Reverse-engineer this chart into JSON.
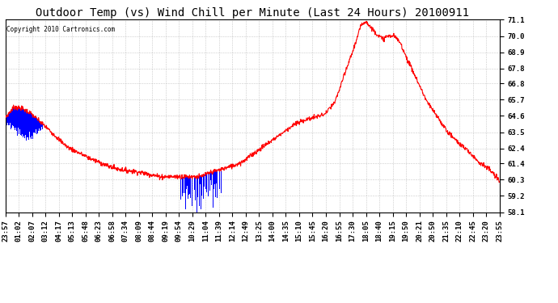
{
  "title": "Outdoor Temp (vs) Wind Chill per Minute (Last 24 Hours) 20100911",
  "copyright": "Copyright 2010 Cartronics.com",
  "ymin": 58.1,
  "ymax": 71.1,
  "yticks": [
    58.1,
    59.2,
    60.3,
    61.4,
    62.4,
    63.5,
    64.6,
    65.7,
    66.8,
    67.8,
    68.9,
    70.0,
    71.1
  ],
  "xtick_labels": [
    "23:57",
    "01:02",
    "02:07",
    "03:12",
    "04:17",
    "05:13",
    "05:48",
    "06:23",
    "06:58",
    "07:34",
    "08:09",
    "08:44",
    "09:19",
    "09:54",
    "10:29",
    "11:04",
    "11:39",
    "12:14",
    "12:49",
    "13:25",
    "14:00",
    "14:35",
    "15:10",
    "15:45",
    "16:20",
    "16:55",
    "17:30",
    "18:05",
    "18:40",
    "19:15",
    "19:50",
    "20:21",
    "20:50",
    "21:35",
    "22:10",
    "22:45",
    "23:20",
    "23:55"
  ],
  "background_color": "#ffffff",
  "grid_color": "#bbbbbb",
  "line_color_red": "#ff0000",
  "bar_color_blue": "#0000ff",
  "title_fontsize": 10,
  "tick_fontsize": 6.5,
  "copyright_fontsize": 5.5
}
